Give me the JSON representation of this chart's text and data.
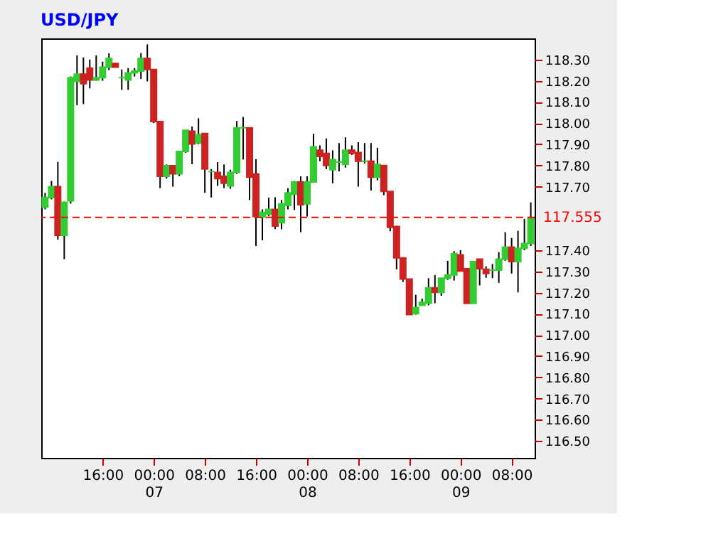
{
  "chart_data": {
    "type": "candlestick",
    "title": "USD/JPY",
    "categories": [
      null,
      null,
      null,
      null,
      null,
      null,
      null,
      null,
      null,
      "16:00",
      null,
      null,
      null,
      null,
      null,
      null,
      null,
      "00:00\n07",
      null,
      null,
      null,
      null,
      null,
      null,
      null,
      "08:00",
      null,
      null,
      null,
      null,
      null,
      null,
      null,
      "16:00",
      null,
      null,
      null,
      null,
      null,
      null,
      null,
      "00:00\n08",
      null,
      null,
      null,
      null,
      null,
      null,
      null,
      "08:00",
      null,
      null,
      null,
      null,
      null,
      null,
      null,
      "16:00",
      null,
      null,
      null,
      null,
      null,
      null,
      null,
      "00:00\n09",
      null,
      null,
      null,
      null,
      null,
      null,
      null,
      "08:00",
      null,
      null,
      null
    ],
    "ohlc": [
      [
        117.604,
        117.671,
        117.593,
        117.649
      ],
      [
        117.649,
        117.727,
        117.64,
        117.7
      ],
      [
        117.7,
        117.817,
        117.45,
        117.47
      ],
      [
        117.47,
        117.63,
        117.358,
        117.626
      ],
      [
        117.633,
        118.22,
        117.62,
        118.215
      ],
      [
        118.197,
        118.32,
        118.085,
        118.231
      ],
      [
        118.231,
        118.31,
        118.09,
        118.186
      ],
      [
        118.26,
        118.3,
        118.164,
        118.204
      ],
      [
        118.204,
        118.32,
        118.2,
        118.215
      ],
      [
        118.215,
        118.29,
        118.2,
        118.264
      ],
      [
        118.264,
        118.33,
        118.25,
        118.305
      ],
      [
        118.282,
        118.285,
        118.264,
        118.264
      ],
      [
        118.215,
        118.253,
        118.157,
        118.215
      ],
      [
        118.204,
        118.26,
        118.157,
        118.237
      ],
      [
        118.237,
        118.26,
        118.22,
        118.246
      ],
      [
        118.246,
        118.331,
        118.208,
        118.305
      ],
      [
        118.305,
        118.372,
        118.197,
        118.253
      ],
      [
        118.253,
        118.253,
        118.0,
        118.007
      ],
      [
        118.007,
        118.007,
        117.693,
        117.749
      ],
      [
        117.749,
        117.805,
        117.738,
        117.799
      ],
      [
        117.799,
        117.8,
        117.7,
        117.761
      ],
      [
        117.761,
        117.866,
        117.75,
        117.866
      ],
      [
        117.866,
        117.966,
        117.86,
        117.966
      ],
      [
        117.962,
        117.984,
        117.806,
        117.902
      ],
      [
        117.906,
        118.023,
        117.9,
        117.946
      ],
      [
        117.951,
        117.951,
        117.671,
        117.783
      ],
      [
        117.772,
        117.783,
        117.649,
        117.772
      ],
      [
        117.767,
        117.816,
        117.704,
        117.738
      ],
      [
        117.749,
        117.805,
        117.693,
        117.716
      ],
      [
        117.704,
        117.78,
        117.69,
        117.767
      ],
      [
        117.767,
        118.01,
        117.76,
        117.978
      ],
      [
        117.978,
        118.029,
        117.828,
        117.978
      ],
      [
        117.978,
        117.978,
        117.637,
        117.745
      ],
      [
        117.76,
        117.83,
        117.42,
        117.559
      ],
      [
        117.557,
        117.593,
        117.447,
        117.579
      ],
      [
        117.57,
        117.648,
        117.56,
        117.593
      ],
      [
        117.593,
        117.65,
        117.5,
        117.514
      ],
      [
        117.53,
        117.637,
        117.499,
        117.619
      ],
      [
        117.611,
        117.693,
        117.593,
        117.671
      ],
      [
        117.664,
        117.727,
        117.59,
        117.722
      ],
      [
        117.722,
        117.749,
        117.485,
        117.615
      ],
      [
        117.619,
        117.749,
        117.559,
        117.722
      ],
      [
        117.722,
        117.95,
        117.72,
        117.888
      ],
      [
        117.872,
        117.895,
        117.82,
        117.843
      ],
      [
        117.857,
        117.928,
        117.783,
        117.8
      ],
      [
        117.78,
        117.872,
        117.716,
        117.828
      ],
      [
        117.816,
        117.906,
        117.772,
        117.816
      ],
      [
        117.805,
        117.933,
        117.79,
        117.872
      ],
      [
        117.872,
        117.895,
        117.85,
        117.857
      ],
      [
        117.861,
        117.91,
        117.7,
        117.82
      ],
      [
        117.82,
        117.906,
        117.81,
        117.82
      ],
      [
        117.82,
        117.906,
        117.682,
        117.745
      ],
      [
        117.745,
        117.884,
        117.73,
        117.805
      ],
      [
        117.8,
        117.8,
        117.66,
        117.678
      ],
      [
        117.678,
        117.678,
        117.49,
        117.508
      ],
      [
        117.512,
        117.512,
        117.31,
        117.364
      ],
      [
        117.364,
        117.364,
        117.25,
        117.264
      ],
      [
        117.264,
        117.264,
        117.096,
        117.096
      ],
      [
        117.1,
        117.19,
        117.096,
        117.13
      ],
      [
        117.14,
        117.171,
        117.14,
        117.154
      ],
      [
        117.15,
        117.268,
        117.14,
        117.223
      ],
      [
        117.223,
        117.283,
        117.15,
        117.201
      ],
      [
        117.201,
        117.268,
        117.185,
        117.268
      ],
      [
        117.268,
        117.35,
        117.26,
        117.283
      ],
      [
        117.283,
        117.396,
        117.257,
        117.384
      ],
      [
        117.378,
        117.4,
        117.3,
        117.302
      ],
      [
        117.313,
        117.313,
        117.149,
        117.149
      ],
      [
        117.149,
        117.346,
        117.149,
        117.346
      ],
      [
        117.358,
        117.358,
        117.234,
        117.313
      ],
      [
        117.31,
        117.324,
        117.27,
        117.29
      ],
      [
        117.306,
        117.335,
        117.268,
        117.306
      ],
      [
        117.306,
        117.391,
        117.246,
        117.358
      ],
      [
        117.358,
        117.485,
        117.35,
        117.414
      ],
      [
        117.414,
        117.458,
        117.29,
        117.346
      ],
      [
        117.346,
        117.492,
        117.201,
        117.409
      ],
      [
        117.409,
        117.548,
        117.4,
        117.432
      ],
      [
        117.432,
        117.626,
        117.42,
        117.552
      ]
    ],
    "colors": [
      "#33cc33",
      "#33cc33",
      "#cc2222",
      "#33cc33",
      "#33cc33",
      "#33cc33",
      "#cc2222",
      "#cc2222",
      "#33cc33",
      "#33cc33",
      "#33cc33",
      "#cc2222",
      "#33cc33",
      "#33cc33",
      "#33cc33",
      "#33cc33",
      "#cc2222",
      "#cc2222",
      "#cc2222",
      "#33cc33",
      "#cc2222",
      "#33cc33",
      "#33cc33",
      "#cc2222",
      "#33cc33",
      "#cc2222",
      "#33cc33",
      "#cc2222",
      "#cc2222",
      "#33cc33",
      "#33cc33",
      "#33cc33",
      "#cc2222",
      "#cc2222",
      "#33cc33",
      "#33cc33",
      "#cc2222",
      "#33cc33",
      "#33cc33",
      "#33cc33",
      "#cc2222",
      "#33cc33",
      "#33cc33",
      "#cc2222",
      "#cc2222",
      "#33cc33",
      "#33cc33",
      "#33cc33",
      "#cc2222",
      "#cc2222",
      "#33cc33",
      "#cc2222",
      "#33cc33",
      "#cc2222",
      "#cc2222",
      "#cc2222",
      "#cc2222",
      "#cc2222",
      "#33cc33",
      "#33cc33",
      "#33cc33",
      "#cc2222",
      "#33cc33",
      "#33cc33",
      "#33cc33",
      "#cc2222",
      "#cc2222",
      "#33cc33",
      "#cc2222",
      "#cc2222",
      "#33cc33",
      "#33cc33",
      "#33cc33",
      "#cc2222",
      "#33cc33",
      "#33cc33",
      "#33cc33"
    ],
    "ylim": [
      116.42,
      118.4
    ],
    "yticks": [
      {
        "value": 116.5,
        "label": "116.50"
      },
      {
        "value": 116.6,
        "label": "116.60"
      },
      {
        "value": 116.7,
        "label": "116.70"
      },
      {
        "value": 116.8,
        "label": "116.80"
      },
      {
        "value": 116.9,
        "label": "116.90"
      },
      {
        "value": 117.0,
        "label": "117.00"
      },
      {
        "value": 117.1,
        "label": "117.10"
      },
      {
        "value": 117.2,
        "label": "117.20"
      },
      {
        "value": 117.3,
        "label": "117.30"
      },
      {
        "value": 117.4,
        "label": "117.40"
      },
      {
        "value": 117.7,
        "label": "117.70"
      },
      {
        "value": 117.8,
        "label": "117.80"
      },
      {
        "value": 117.9,
        "label": "117.90"
      },
      {
        "value": 118.0,
        "label": "118.00"
      },
      {
        "value": 118.1,
        "label": "118.10"
      },
      {
        "value": 118.2,
        "label": "118.20"
      },
      {
        "value": 118.3,
        "label": "118.30"
      }
    ],
    "ref_lines": [
      {
        "axis": "y",
        "value": 117.555,
        "label": "117.555",
        "color": "#ff0000",
        "line_style": "dashed"
      }
    ],
    "grid": false
  }
}
